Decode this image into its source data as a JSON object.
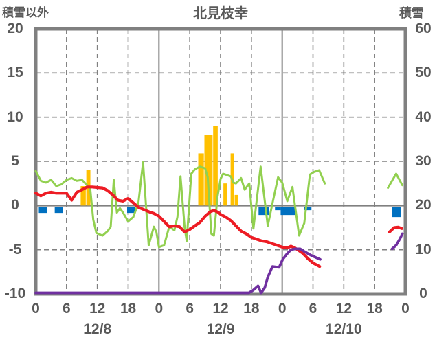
{
  "titles": {
    "left": "積雪以外",
    "center": "北見枝幸",
    "right": "積雪"
  },
  "colors": {
    "frame_gray": "#808080",
    "text_gray": "#595959",
    "red_line": "#ED1C24",
    "green_line": "#92D050",
    "orange_bars": "#FFC000",
    "purple_line": "#7030A0",
    "blue_marks": "#0070C0",
    "background": "#FFFFFF"
  },
  "chart_data": {
    "type": "mixed-line-bar",
    "title": "北見枝幸",
    "left_axis": {
      "label": "積雪以外",
      "min": -10,
      "max": 20,
      "ticks": [
        20,
        15,
        10,
        5,
        0,
        -5,
        -10
      ]
    },
    "right_axis": {
      "label": "積雪",
      "min": 0,
      "max": 60,
      "ticks": [
        60,
        50,
        40,
        30,
        20,
        10,
        0
      ]
    },
    "x_axis": {
      "total_hours": 72,
      "tick_step_hours": 6,
      "tick_labels": [
        "0",
        "6",
        "12",
        "18",
        "0",
        "6",
        "12",
        "18",
        "0",
        "6",
        "12",
        "18",
        "0"
      ],
      "dates": [
        {
          "label": "12/8",
          "t": 12
        },
        {
          "label": "12/9",
          "t": 36
        },
        {
          "label": "12/10",
          "t": 60
        }
      ]
    },
    "grid": {
      "h_dashed_values": [
        15,
        10,
        5,
        -5
      ],
      "h_solid_values": [
        0
      ],
      "v_dashed_hours": [
        6,
        12,
        18,
        30,
        36,
        42,
        54,
        60,
        66
      ],
      "v_solid_hours": [
        24,
        48
      ]
    },
    "series": {
      "orange_bars": {
        "axis": "left",
        "bars": [
          {
            "start": 8.7,
            "end": 9.8,
            "value": 2.2
          },
          {
            "start": 9.8,
            "end": 10.7,
            "value": 4.0
          },
          {
            "start": 31.6,
            "end": 32.8,
            "value": 5.9
          },
          {
            "start": 32.8,
            "end": 34.5,
            "value": 8.0
          },
          {
            "start": 34.5,
            "end": 35.5,
            "value": 9.0
          },
          {
            "start": 36.5,
            "end": 37.3,
            "value": 2.5
          },
          {
            "start": 37.9,
            "end": 38.7,
            "value": 5.9
          },
          {
            "start": 38.7,
            "end": 39.5,
            "value": 1.2
          }
        ]
      },
      "blue_marks": {
        "note": "short marks hanging just below the zero line",
        "segments": [
          {
            "start": 0.6,
            "end": 2.2,
            "depth": 9
          },
          {
            "start": 3.7,
            "end": 5.3,
            "depth": 9
          },
          {
            "start": 17.8,
            "end": 19.4,
            "depth": 9
          },
          {
            "start": 43.4,
            "end": 45.5,
            "depth": 12
          },
          {
            "start": 46.6,
            "end": 47.7,
            "depth": 5
          },
          {
            "start": 47.7,
            "end": 50.6,
            "depth": 12
          },
          {
            "start": 52.2,
            "end": 53.7,
            "depth": 5
          },
          {
            "start": 69.4,
            "end": 71.1,
            "depth": 15
          }
        ]
      },
      "green_line": {
        "axis": "left",
        "stroke_width": 3,
        "segments": [
          [
            [
              0,
              3.9
            ],
            [
              1,
              2.8
            ],
            [
              2,
              2.6
            ],
            [
              3,
              2.9
            ],
            [
              4,
              2.2
            ],
            [
              5,
              2.4
            ],
            [
              6,
              2.9
            ],
            [
              7,
              3.1
            ],
            [
              8,
              2.8
            ],
            [
              9,
              2.9
            ],
            [
              10,
              2.3
            ],
            [
              10.6,
              2.0
            ],
            [
              11.2,
              -1.6
            ],
            [
              11.8,
              -3.1
            ],
            [
              13,
              -3.4
            ],
            [
              14,
              -2.9
            ],
            [
              14.6,
              -2.4
            ],
            [
              15.2,
              2.9
            ],
            [
              15.8,
              -0.8
            ],
            [
              16.4,
              -0.3
            ],
            [
              17,
              -0.8
            ],
            [
              18,
              -1.8
            ],
            [
              19,
              -1.3
            ],
            [
              20,
              0.3
            ],
            [
              20.9,
              4.9
            ],
            [
              22,
              -4.5
            ],
            [
              23,
              -2.4
            ],
            [
              23.5,
              -3.0
            ],
            [
              24,
              -4.7
            ],
            [
              25,
              -4.5
            ],
            [
              26,
              -2.4
            ],
            [
              27,
              -2.8
            ],
            [
              27.6,
              -1.3
            ],
            [
              28.2,
              3.3
            ],
            [
              29,
              -2.5
            ],
            [
              29.4,
              -4.0
            ],
            [
              30.3,
              3.6
            ],
            [
              31,
              4.1
            ],
            [
              32,
              4.4
            ],
            [
              33,
              4.2
            ],
            [
              33.5,
              3.2
            ],
            [
              34.2,
              -3.2
            ],
            [
              34.7,
              -3.4
            ],
            [
              35.4,
              1.0
            ],
            [
              36,
              3.0
            ],
            [
              36.5,
              3.6
            ],
            [
              37,
              3.5
            ],
            [
              38,
              3.3
            ],
            [
              38.5,
              2.6
            ],
            [
              39,
              2.5
            ],
            [
              40,
              3.1
            ],
            [
              40.7,
              1.8
            ],
            [
              41.6,
              2.5
            ],
            [
              42.4,
              -2.6
            ],
            [
              43.8,
              4.4
            ],
            [
              45.2,
              -2.3
            ],
            [
              46.2,
              0.5
            ],
            [
              47.2,
              3.2
            ],
            [
              48,
              2.6
            ],
            [
              49,
              0.5
            ],
            [
              50,
              2.1
            ],
            [
              51.3,
              -3.4
            ],
            [
              52.3,
              -2.0
            ],
            [
              53.4,
              3.5
            ],
            [
              54.2,
              3.8
            ],
            [
              55.2,
              4.0
            ],
            [
              56.3,
              2.5
            ]
          ],
          [
            [
              68.6,
              2.0
            ],
            [
              70.2,
              3.6
            ],
            [
              71.4,
              2.3
            ]
          ]
        ]
      },
      "red_line": {
        "axis": "left",
        "stroke_width": 4.2,
        "segments": [
          [
            [
              0,
              1.4
            ],
            [
              1,
              1.1
            ],
            [
              2,
              1.4
            ],
            [
              3,
              1.5
            ],
            [
              4,
              1.4
            ],
            [
              5,
              1.4
            ],
            [
              6,
              1.4
            ],
            [
              7,
              0.6
            ],
            [
              8,
              1.5
            ],
            [
              9,
              1.8
            ],
            [
              10,
              2.1
            ],
            [
              11,
              2.1
            ],
            [
              12,
              2.05
            ],
            [
              13,
              2.0
            ],
            [
              14,
              1.7
            ],
            [
              15,
              1.2
            ],
            [
              16,
              0.6
            ],
            [
              17,
              0.5
            ],
            [
              18,
              0.8
            ],
            [
              19,
              0.3
            ],
            [
              20,
              -0.2
            ],
            [
              21,
              -0.45
            ],
            [
              22,
              -0.7
            ],
            [
              23,
              -0.9
            ],
            [
              24,
              -1.2
            ],
            [
              25,
              -1.8
            ],
            [
              26,
              -2.4
            ],
            [
              27,
              -2.3
            ],
            [
              28,
              -2.4
            ],
            [
              29,
              -3.0
            ],
            [
              30,
              -2.7
            ],
            [
              31,
              -2.3
            ],
            [
              32,
              -1.9
            ],
            [
              33,
              -1.2
            ],
            [
              34,
              -0.7
            ],
            [
              34.7,
              -0.55
            ],
            [
              35.5,
              -0.75
            ],
            [
              36,
              -1.0
            ],
            [
              37,
              -1.3
            ],
            [
              38,
              -1.7
            ],
            [
              39,
              -2.3
            ],
            [
              40,
              -2.9
            ],
            [
              41,
              -3.2
            ],
            [
              42,
              -3.6
            ],
            [
              43,
              -3.8
            ],
            [
              44,
              -4.0
            ],
            [
              45,
              -4.1
            ],
            [
              46,
              -4.3
            ],
            [
              47,
              -4.5
            ],
            [
              48,
              -4.7
            ],
            [
              49,
              -4.8
            ],
            [
              49.7,
              -4.6
            ],
            [
              50.5,
              -4.8
            ],
            [
              51,
              -5.0
            ],
            [
              52,
              -5.4
            ],
            [
              53,
              -6.0
            ],
            [
              54,
              -6.5
            ],
            [
              55.3,
              -6.9
            ]
          ],
          [
            [
              68.9,
              -3.0
            ],
            [
              69.8,
              -2.5
            ],
            [
              70.6,
              -2.45
            ],
            [
              71.3,
              -2.6
            ]
          ]
        ]
      },
      "purple_line": {
        "axis": "left",
        "stroke_width": 3.8,
        "segments": [
          [
            [
              0,
              -10
            ],
            [
              41.5,
              -10
            ],
            [
              42.3,
              -9.6
            ],
            [
              43.3,
              -9.1
            ],
            [
              43.9,
              -9.9
            ],
            [
              44.6,
              -9.3
            ],
            [
              45.2,
              -8.1
            ],
            [
              46.1,
              -6.9
            ],
            [
              47.4,
              -7.0
            ],
            [
              48.1,
              -6.1
            ],
            [
              48.9,
              -5.5
            ],
            [
              49.7,
              -5.0
            ],
            [
              50.5,
              -4.9
            ],
            [
              51.5,
              -4.9
            ],
            [
              52.3,
              -5.2
            ],
            [
              53.5,
              -5.6
            ],
            [
              55,
              -6.0
            ],
            [
              55.4,
              -6.1
            ]
          ],
          [
            [
              69.4,
              -4.9
            ],
            [
              70.2,
              -4.5
            ],
            [
              71,
              -3.7
            ],
            [
              71.4,
              -3.2
            ]
          ]
        ]
      }
    }
  }
}
